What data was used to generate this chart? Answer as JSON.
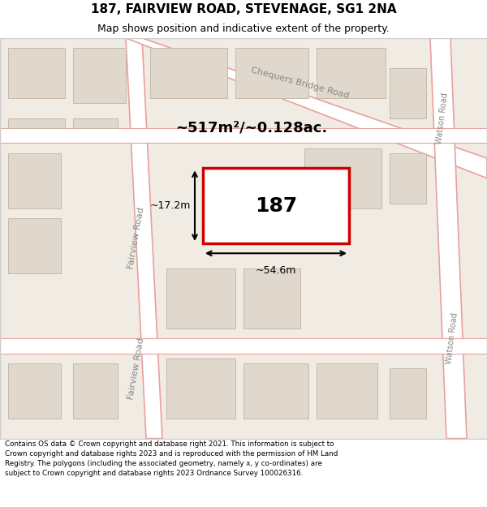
{
  "title_line1": "187, FAIRVIEW ROAD, STEVENAGE, SG1 2NA",
  "title_line2": "Map shows position and indicative extent of the property.",
  "footer_text": "Contains OS data © Crown copyright and database right 2021. This information is subject to Crown copyright and database rights 2023 and is reproduced with the permission of HM Land Registry. The polygons (including the associated geometry, namely x, y co-ordinates) are subject to Crown copyright and database rights 2023 Ordnance Survey 100026316.",
  "map_bg": "#f0ece4",
  "road_fill": "#ffffff",
  "road_stroke": "#e8a0a0",
  "block_fill": "#e0d8cc",
  "block_stroke": "#c8b8a8",
  "highlight_fill": "#ffffff",
  "highlight_stroke": "#cc0000",
  "area_text": "~517m²/~0.128ac.",
  "label_187": "187",
  "dim_width": "~54.6m",
  "dim_height": "~17.2m",
  "footer_bg": "#ffffff",
  "map_border": "#cccccc"
}
